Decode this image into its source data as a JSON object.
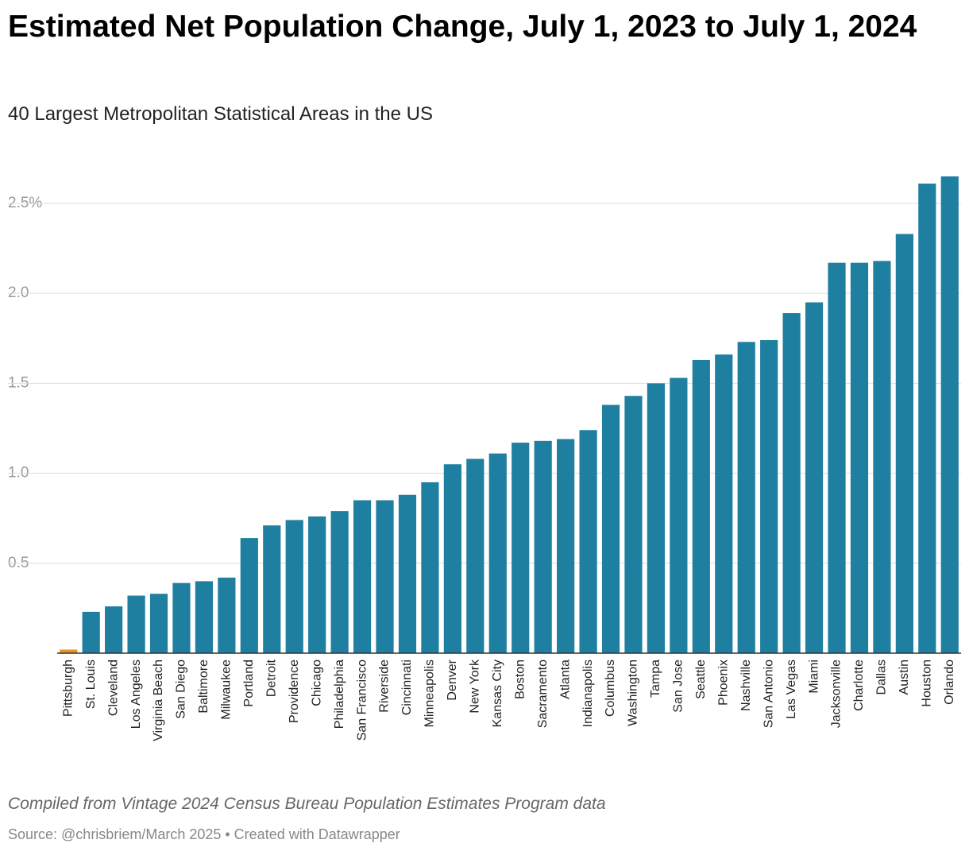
{
  "chart_data": {
    "type": "bar",
    "title": "Estimated Net Population Change, July 1, 2023 to July 1, 2024",
    "subtitle": "40 Largest Metropolitan Statistical Areas in the US",
    "note": "Compiled from Vintage 2024 Census Bureau Population Estimates Program data",
    "source": "Source: @chrisbriem/March 2025 • Created with Datawrapper",
    "categories": [
      "Pittsburgh",
      "St. Louis",
      "Cleveland",
      "Los Angeles",
      "Virginia Beach",
      "San Diego",
      "Baltimore",
      "Milwaukee",
      "Portland",
      "Detroit",
      "Providence",
      "Chicago",
      "Philadelphia",
      "San Francisco",
      "Riverside",
      "Cincinnati",
      "Minneapolis",
      "Denver",
      "New York",
      "Kansas City",
      "Boston",
      "Sacramento",
      "Atlanta",
      "Indianapolis",
      "Columbus",
      "Washington",
      "Tampa",
      "San Jose",
      "Seattle",
      "Phoenix",
      "Nashville",
      "San Antonio",
      "Las Vegas",
      "Miami",
      "Jacksonville",
      "Charlotte",
      "Dallas",
      "Austin",
      "Houston",
      "Orlando"
    ],
    "values": [
      0.02,
      0.23,
      0.26,
      0.32,
      0.33,
      0.39,
      0.4,
      0.42,
      0.64,
      0.71,
      0.74,
      0.76,
      0.79,
      0.85,
      0.85,
      0.88,
      0.95,
      1.05,
      1.08,
      1.11,
      1.17,
      1.18,
      1.19,
      1.24,
      1.38,
      1.43,
      1.5,
      1.53,
      1.63,
      1.66,
      1.73,
      1.74,
      1.89,
      1.95,
      2.17,
      2.17,
      2.18,
      2.33,
      2.61,
      2.65
    ],
    "colors": [
      "#e8961e",
      "#1f7fa0",
      "#1f7fa0",
      "#1f7fa0",
      "#1f7fa0",
      "#1f7fa0",
      "#1f7fa0",
      "#1f7fa0",
      "#1f7fa0",
      "#1f7fa0",
      "#1f7fa0",
      "#1f7fa0",
      "#1f7fa0",
      "#1f7fa0",
      "#1f7fa0",
      "#1f7fa0",
      "#1f7fa0",
      "#1f7fa0",
      "#1f7fa0",
      "#1f7fa0",
      "#1f7fa0",
      "#1f7fa0",
      "#1f7fa0",
      "#1f7fa0",
      "#1f7fa0",
      "#1f7fa0",
      "#1f7fa0",
      "#1f7fa0",
      "#1f7fa0",
      "#1f7fa0",
      "#1f7fa0",
      "#1f7fa0",
      "#1f7fa0",
      "#1f7fa0",
      "#1f7fa0",
      "#1f7fa0",
      "#1f7fa0",
      "#1f7fa0",
      "#1f7fa0",
      "#1f7fa0"
    ],
    "ylim": [
      0,
      2.65
    ],
    "yticks": [
      0.5,
      {
        "value": 1,
        "label": "1.0"
      },
      1.5,
      {
        "value": 2,
        "label": "2.0"
      },
      {
        "value": 2.5,
        "label": "2.5%"
      }
    ],
    "grid": true
  }
}
